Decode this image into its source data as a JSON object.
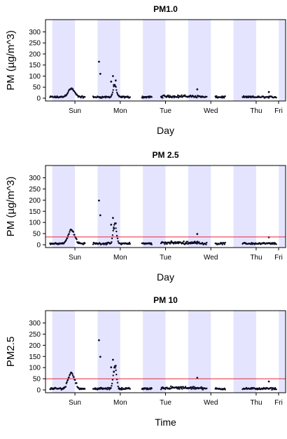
{
  "colors": {
    "night_shade": "#e4e4ff",
    "points": "#0d0d26",
    "threshold_line": "#e8263c",
    "axis": "#000000"
  },
  "chart_data": [
    {
      "type": "scatter",
      "title": "PM1.0",
      "xlabel": "Day",
      "ylabel": "PM (µg/m^3)",
      "ylim": [
        0,
        330
      ],
      "yticks": [
        0,
        50,
        100,
        150,
        200,
        250,
        300
      ],
      "xlim": [
        -0.15,
        5.15
      ],
      "x_unit": "days",
      "xticks": [
        {
          "x": 0.5,
          "label": "Sun"
        },
        {
          "x": 1.5,
          "label": "Mon"
        },
        {
          "x": 2.5,
          "label": "Tue"
        },
        {
          "x": 3.5,
          "label": "Wed"
        },
        {
          "x": 4.5,
          "label": "Thu"
        },
        {
          "x": 5.5,
          "label": "Fri"
        }
      ],
      "shaded_bands": [
        [
          0,
          0.5
        ],
        [
          1,
          1.5
        ],
        [
          2,
          2.5
        ],
        [
          3,
          3.5
        ],
        [
          4,
          4.5
        ],
        [
          5,
          5.5
        ]
      ],
      "threshold": null,
      "peak_scale": 1.0,
      "grid": false
    },
    {
      "type": "scatter",
      "title": "PM 2.5",
      "xlabel": "Day",
      "ylabel": "PM (µg/m^3)",
      "ylim": [
        0,
        330
      ],
      "yticks": [
        0,
        50,
        100,
        150,
        200,
        250,
        300
      ],
      "xlim": [
        -0.15,
        5.15
      ],
      "x_unit": "days",
      "xticks": [
        {
          "x": 0.5,
          "label": "Sun"
        },
        {
          "x": 1.5,
          "label": "Mon"
        },
        {
          "x": 2.5,
          "label": "Tue"
        },
        {
          "x": 3.5,
          "label": "Wed"
        },
        {
          "x": 4.5,
          "label": "Thu"
        },
        {
          "x": 5.5,
          "label": "Fri"
        }
      ],
      "shaded_bands": [
        [
          0,
          0.5
        ],
        [
          1,
          1.5
        ],
        [
          2,
          2.5
        ],
        [
          3,
          3.5
        ],
        [
          4,
          4.5
        ],
        [
          5,
          5.5
        ]
      ],
      "threshold": 35,
      "peak_scale": 1.6,
      "grid": false
    },
    {
      "type": "scatter",
      "title": "PM 10",
      "xlabel": "Time",
      "ylabel": "PM2.5",
      "ylim": [
        0,
        330
      ],
      "yticks": [
        0,
        50,
        100,
        150,
        200,
        250,
        300
      ],
      "xlim": [
        -0.15,
        5.15
      ],
      "x_unit": "days",
      "xticks": [
        {
          "x": 0.5,
          "label": "Sun"
        },
        {
          "x": 1.5,
          "label": "Mon"
        },
        {
          "x": 2.5,
          "label": "Tue"
        },
        {
          "x": 3.5,
          "label": "Wed"
        },
        {
          "x": 4.5,
          "label": "Thu"
        },
        {
          "x": 5.5,
          "label": "Fri"
        }
      ],
      "shaded_bands": [
        [
          0,
          0.5
        ],
        [
          1,
          1.5
        ],
        [
          2,
          2.5
        ],
        [
          3,
          3.5
        ],
        [
          4,
          4.5
        ],
        [
          5,
          5.5
        ]
      ],
      "threshold": 50,
      "peak_scale": 1.8,
      "grid": false
    }
  ]
}
